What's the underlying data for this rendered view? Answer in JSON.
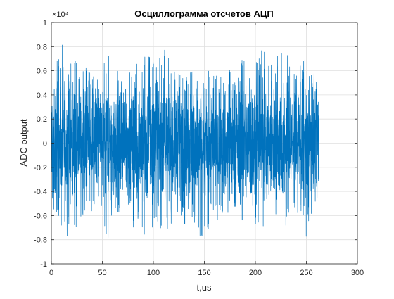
{
  "chart_data": {
    "type": "line",
    "title": "Осциллограмма отсчетов АЦП",
    "xlabel": "t,us",
    "ylabel": "ADC output",
    "xlim": [
      0,
      300
    ],
    "ylim": [
      -10000,
      10000
    ],
    "x_ticks": [
      0,
      50,
      100,
      150,
      200,
      250,
      300
    ],
    "y_ticks": [
      -10000,
      -8000,
      -6000,
      -4000,
      -2000,
      0,
      2000,
      4000,
      6000,
      8000,
      10000
    ],
    "x_tick_labels": [
      "0",
      "50",
      "100",
      "150",
      "200",
      "250",
      "300"
    ],
    "y_tick_labels": [
      "-1",
      "-0.8",
      "-0.6",
      "-0.4",
      "-0.2",
      "0",
      "0.2",
      "0.4",
      "0.6",
      "0.8",
      "1"
    ],
    "y_exponent_label": "×10⁴",
    "grid": true,
    "series": [
      {
        "color": "#0072BD",
        "x_range": [
          0,
          262
        ],
        "typical_amplitude": 3000,
        "peak_amplitude": 8200,
        "peak_envelope": [
          {
            "x": 0,
            "y": 5500
          },
          {
            "x": 5,
            "y": 7000
          },
          {
            "x": 10,
            "y": 8200
          },
          {
            "x": 15,
            "y": 7800
          },
          {
            "x": 20,
            "y": 6500
          },
          {
            "x": 25,
            "y": 7000
          },
          {
            "x": 30,
            "y": 5800
          },
          {
            "x": 35,
            "y": 6500
          },
          {
            "x": 40,
            "y": 5500
          },
          {
            "x": 45,
            "y": 6500
          },
          {
            "x": 50,
            "y": 6000
          },
          {
            "x": 55,
            "y": 8000
          },
          {
            "x": 60,
            "y": 7000
          },
          {
            "x": 65,
            "y": 6500
          },
          {
            "x": 70,
            "y": 5000
          },
          {
            "x": 75,
            "y": 6000
          },
          {
            "x": 80,
            "y": 7000
          },
          {
            "x": 85,
            "y": 6500
          },
          {
            "x": 90,
            "y": 8200
          },
          {
            "x": 95,
            "y": 8000
          },
          {
            "x": 100,
            "y": 8200
          },
          {
            "x": 105,
            "y": 7500
          },
          {
            "x": 110,
            "y": 8200
          },
          {
            "x": 115,
            "y": 7000
          },
          {
            "x": 120,
            "y": 7500
          },
          {
            "x": 125,
            "y": 6500
          },
          {
            "x": 130,
            "y": 7000
          },
          {
            "x": 135,
            "y": 6000
          },
          {
            "x": 140,
            "y": 7500
          },
          {
            "x": 145,
            "y": 8200
          },
          {
            "x": 150,
            "y": 7500
          },
          {
            "x": 155,
            "y": 7000
          },
          {
            "x": 160,
            "y": 5500
          },
          {
            "x": 165,
            "y": 7000
          },
          {
            "x": 170,
            "y": 6500
          },
          {
            "x": 175,
            "y": 6000
          },
          {
            "x": 180,
            "y": 5500
          },
          {
            "x": 185,
            "y": 6500
          },
          {
            "x": 190,
            "y": 7500
          },
          {
            "x": 195,
            "y": 6500
          },
          {
            "x": 200,
            "y": 7000
          },
          {
            "x": 205,
            "y": 8200
          },
          {
            "x": 210,
            "y": 8000
          },
          {
            "x": 215,
            "y": 7000
          },
          {
            "x": 220,
            "y": 7500
          },
          {
            "x": 225,
            "y": 8200
          },
          {
            "x": 230,
            "y": 7000
          },
          {
            "x": 235,
            "y": 8200
          },
          {
            "x": 240,
            "y": 6500
          },
          {
            "x": 245,
            "y": 7000
          },
          {
            "x": 250,
            "y": 8200
          },
          {
            "x": 255,
            "y": 6500
          },
          {
            "x": 260,
            "y": 5000
          },
          {
            "x": 262,
            "y": 3000
          }
        ]
      }
    ]
  }
}
